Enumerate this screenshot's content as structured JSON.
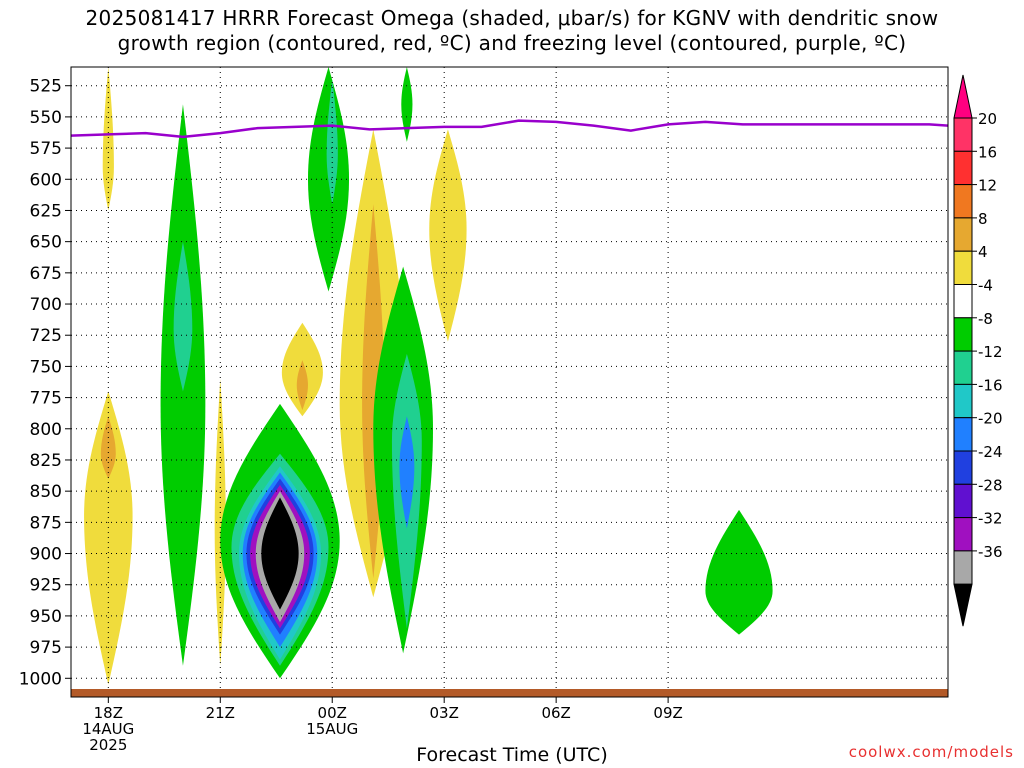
{
  "header": {
    "title_line1": "2025081417 HRRR Forecast Omega (shaded, μbar/s) for KGNV with dendritic snow",
    "title_line2": "growth region (contoured, red, ºC) and freezing level (contoured, purple, ºC)"
  },
  "footer": {
    "credit": "coolwx.com/models"
  },
  "chart_data": {
    "type": "heatmap",
    "title": "2025081417 HRRR Forecast Omega (shaded, μbar/s) for KGNV with dendritic snow growth region (contoured, red, ºC) and freezing level (contoured, purple, ºC)",
    "xlabel": "Forecast Time (UTC)",
    "ylabel": "",
    "x_unit": "hours after 2025-08-14 17Z",
    "xlim": [
      17,
      40.5
    ],
    "ylim": [
      1015,
      510
    ],
    "y_scale": "pressure (hPa), top = low pressure",
    "x_ticks": [
      {
        "x": 18,
        "label": [
          "18Z",
          "14AUG",
          "2025"
        ]
      },
      {
        "x": 21,
        "label": [
          "21Z"
        ]
      },
      {
        "x": 24,
        "label": [
          "00Z",
          "15AUG"
        ]
      },
      {
        "x": 27,
        "label": [
          "03Z"
        ]
      },
      {
        "x": 30,
        "label": [
          "06Z"
        ]
      },
      {
        "x": 33,
        "label": [
          "09Z"
        ]
      }
    ],
    "y_ticks": [
      525,
      550,
      575,
      600,
      625,
      650,
      675,
      700,
      725,
      750,
      775,
      800,
      825,
      850,
      875,
      900,
      925,
      950,
      975,
      1000
    ],
    "grid": true,
    "colorbar": {
      "unit": "μbar/s",
      "levels": [
        {
          "label": "20",
          "color": "#ff3366"
        },
        {
          "label": "16",
          "color": "#ff3030"
        },
        {
          "label": "12",
          "color": "#f07820"
        },
        {
          "label": "8",
          "color": "#e6a830"
        },
        {
          "label": "4",
          "color": "#f0dc3c"
        },
        {
          "label": "-4",
          "color": "#ffffff"
        },
        {
          "label": "-8",
          "color": "#00cc00"
        },
        {
          "label": "-12",
          "color": "#20d090"
        },
        {
          "label": "-16",
          "color": "#20c8c8"
        },
        {
          "label": "-20",
          "color": "#2080ff"
        },
        {
          "label": "-24",
          "color": "#2040e0"
        },
        {
          "label": "-28",
          "color": "#6010d0"
        },
        {
          "label": "-32",
          "color": "#a010c0"
        },
        {
          "label": "-36",
          "color": "#a8a8a8"
        }
      ],
      "min_color": "#000000",
      "max_color": "#ff0080"
    },
    "freezing_level": {
      "color": "#9900cc",
      "x": [
        17,
        18,
        19,
        20,
        21,
        22,
        23,
        24,
        25,
        26,
        27,
        28,
        29,
        30,
        31,
        32,
        33,
        34,
        35,
        36,
        37,
        38,
        39,
        40,
        40.5
      ],
      "p": [
        565,
        564,
        563,
        566,
        563,
        559,
        558,
        557,
        560,
        559,
        558,
        558,
        553,
        554,
        557,
        561,
        556,
        554,
        556,
        556,
        556,
        556,
        556,
        556,
        557
      ]
    },
    "omega_blobs": [
      {
        "center": [
          18,
          590
        ],
        "half_width": 0.15,
        "p_range": [
          510,
          625
        ],
        "color": "#f0dc3c"
      },
      {
        "center": [
          18,
          870
        ],
        "half_width": 0.65,
        "p_range": [
          770,
          1005
        ],
        "color": "#f0dc3c"
      },
      {
        "center": [
          18,
          820
        ],
        "half_width": 0.2,
        "p_range": [
          790,
          840
        ],
        "color": "#e6a830"
      },
      {
        "center": [
          20,
          780
        ],
        "half_width": 0.6,
        "p_range": [
          540,
          990
        ],
        "color": "#00cc00"
      },
      {
        "center": [
          20,
          720
        ],
        "half_width": 0.25,
        "p_range": [
          650,
          770
        ],
        "color": "#20d090"
      },
      {
        "center": [
          21,
          880
        ],
        "half_width": 0.15,
        "p_range": [
          760,
          990
        ],
        "color": "#f0dc3c"
      },
      {
        "center": [
          22.6,
          890
        ],
        "half_width": 1.6,
        "p_range": [
          780,
          1000
        ],
        "color": "#00cc00"
      },
      {
        "center": [
          22.6,
          895
        ],
        "half_width": 1.3,
        "p_range": [
          820,
          990
        ],
        "color": "#20d090"
      },
      {
        "center": [
          22.6,
          900
        ],
        "half_width": 1.1,
        "p_range": [
          830,
          985
        ],
        "color": "#20c8c8"
      },
      {
        "center": [
          22.6,
          900
        ],
        "half_width": 1.0,
        "p_range": [
          835,
          975
        ],
        "color": "#2080ff"
      },
      {
        "center": [
          22.6,
          900
        ],
        "half_width": 0.9,
        "p_range": [
          840,
          965
        ],
        "color": "#2040e0"
      },
      {
        "center": [
          22.6,
          900
        ],
        "half_width": 0.8,
        "p_range": [
          845,
          960
        ],
        "color": "#a010c0"
      },
      {
        "center": [
          22.6,
          900
        ],
        "half_width": 0.65,
        "p_range": [
          850,
          955
        ],
        "color": "#a8a8a8"
      },
      {
        "center": [
          22.6,
          900
        ],
        "half_width": 0.5,
        "p_range": [
          855,
          945
        ],
        "color": "#000000"
      },
      {
        "center": [
          23.2,
          755
        ],
        "half_width": 0.55,
        "p_range": [
          715,
          790
        ],
        "color": "#f0dc3c"
      },
      {
        "center": [
          23.2,
          765
        ],
        "half_width": 0.15,
        "p_range": [
          745,
          785
        ],
        "color": "#e6a830"
      },
      {
        "center": [
          23.9,
          600
        ],
        "half_width": 0.55,
        "p_range": [
          510,
          690
        ],
        "color": "#00cc00"
      },
      {
        "center": [
          24,
          580
        ],
        "half_width": 0.15,
        "p_range": [
          520,
          620
        ],
        "color": "#20d090"
      },
      {
        "center": [
          25.1,
          780
        ],
        "half_width": 0.9,
        "p_range": [
          560,
          935
        ],
        "color": "#f0dc3c"
      },
      {
        "center": [
          25.1,
          780
        ],
        "half_width": 0.3,
        "p_range": [
          620,
          920
        ],
        "color": "#e6a830"
      },
      {
        "center": [
          25.9,
          800
        ],
        "half_width": 0.8,
        "p_range": [
          670,
          980
        ],
        "color": "#00cc00"
      },
      {
        "center": [
          26,
          810
        ],
        "half_width": 0.4,
        "p_range": [
          740,
          960
        ],
        "color": "#20d090"
      },
      {
        "center": [
          26,
          830
        ],
        "half_width": 0.2,
        "p_range": [
          790,
          880
        ],
        "color": "#2080ff"
      },
      {
        "center": [
          26,
          540
        ],
        "half_width": 0.15,
        "p_range": [
          510,
          570
        ],
        "color": "#00cc00"
      },
      {
        "center": [
          27.1,
          640
        ],
        "half_width": 0.5,
        "p_range": [
          560,
          730
        ],
        "color": "#f0dc3c"
      },
      {
        "center": [
          34.9,
          930
        ],
        "half_width": 0.9,
        "p_range": [
          865,
          965
        ],
        "color": "#00cc00"
      }
    ]
  }
}
